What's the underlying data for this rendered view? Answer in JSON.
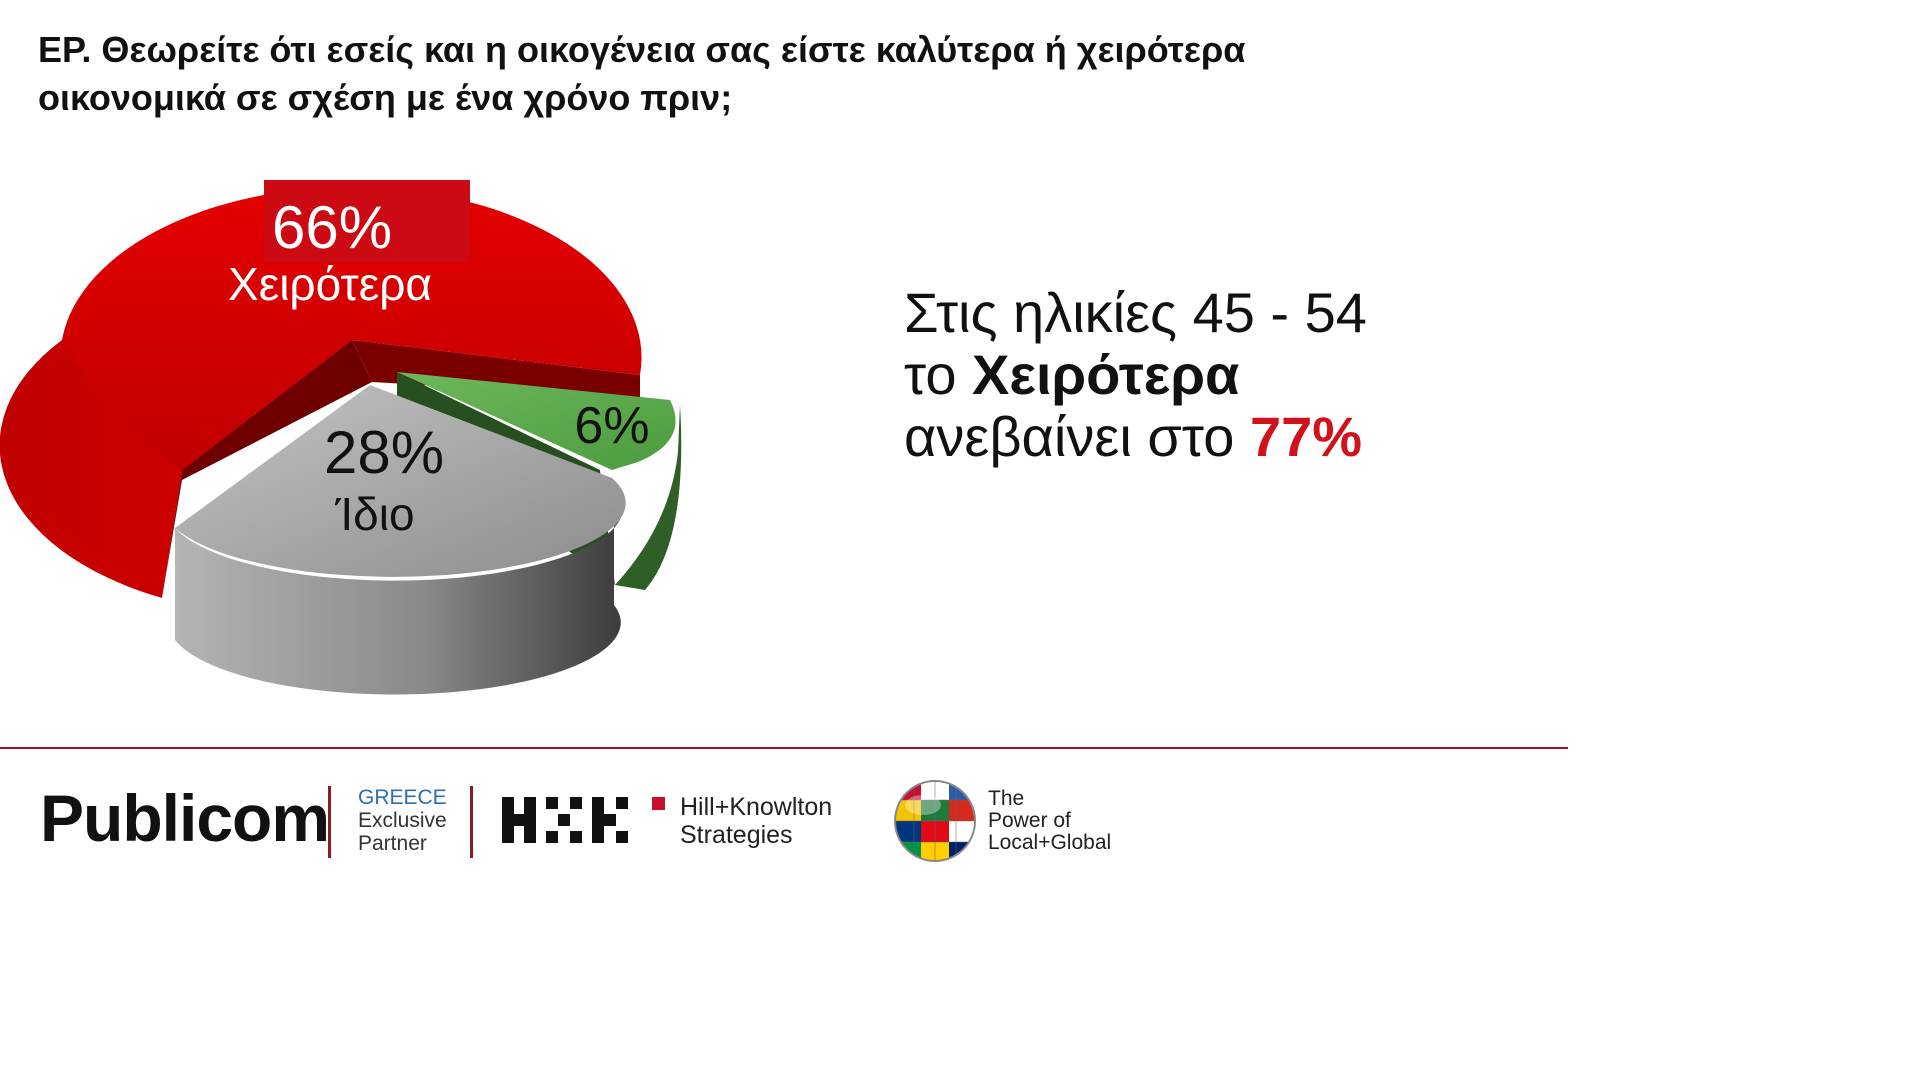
{
  "question": "ΕΡ. Θεωρείτε ότι εσείς και η οικογένεια σας είστε καλύτερα ή χειρότερα οικονομικά σε σχέση με ένα χρόνο πριν;",
  "chart_data": {
    "type": "pie",
    "slices": [
      {
        "pct_label": "66%",
        "label": "Χειρότερα",
        "value": 66,
        "color": "#d40000"
      },
      {
        "pct_label": "28%",
        "label": "Ίδιο",
        "value": 28,
        "color": "#a0a0a0"
      },
      {
        "pct_label": "6%",
        "label": "",
        "value": 6,
        "color": "#5caa4c"
      }
    ],
    "style": "3d-exploded"
  },
  "side_note": {
    "line1": "Στις ηλικίες 45 - 54",
    "line2_prefix": "το ",
    "line2_bold": "Χειρότερα",
    "line3_prefix": "ανεβαίνει στο ",
    "line3_highlight": "77%"
  },
  "footer": {
    "brand": "Publicom",
    "partner_region": "GREECE",
    "partner_line1": "Exclusive",
    "partner_line2": "Partner",
    "hk_line1": "Hill+Knowlton",
    "hk_line2": "Strategies",
    "tag_line1": "The",
    "tag_line2": "Power of",
    "tag_line3": "Local+Global"
  },
  "colors": {
    "accent_red": "#d0121a",
    "divider": "#8e1b22",
    "partner_blue": "#2e6db3"
  }
}
